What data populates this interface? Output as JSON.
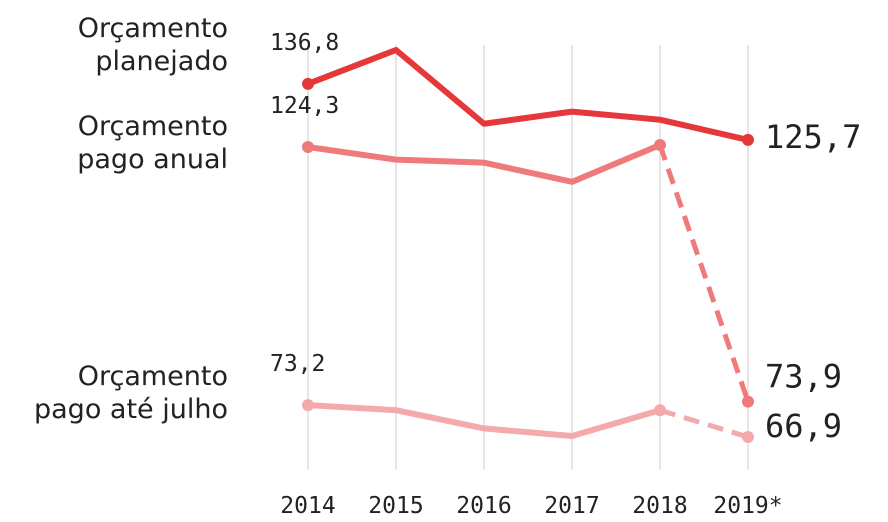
{
  "chart_data": {
    "type": "line",
    "categories": [
      "2014",
      "2015",
      "2016",
      "2017",
      "2018",
      "2019*"
    ],
    "grid": true,
    "series": [
      {
        "name": "Orçamento planejado",
        "color": "#e5383b",
        "dashed_last_segment": false,
        "values": [
          136.8,
          143.5,
          128.9,
          131.3,
          129.7,
          125.7
        ],
        "value_labels": [
          "136,8",
          null,
          null,
          null,
          null,
          "125,7"
        ]
      },
      {
        "name": "Orçamento pago anual",
        "color": "#ee7a7b",
        "dashed_last_segment": true,
        "values": [
          124.3,
          121.8,
          121.2,
          117.4,
          124.7,
          73.9
        ],
        "value_labels": [
          "124,3",
          null,
          null,
          null,
          null,
          "73,9"
        ]
      },
      {
        "name": "Orçamento pago até julho",
        "color": "#f4aaab",
        "dashed_last_segment": true,
        "values": [
          73.2,
          72.2,
          68.6,
          67.1,
          72.2,
          66.9
        ],
        "value_labels": [
          "73,2",
          null,
          null,
          null,
          null,
          "66,9"
        ]
      }
    ]
  }
}
